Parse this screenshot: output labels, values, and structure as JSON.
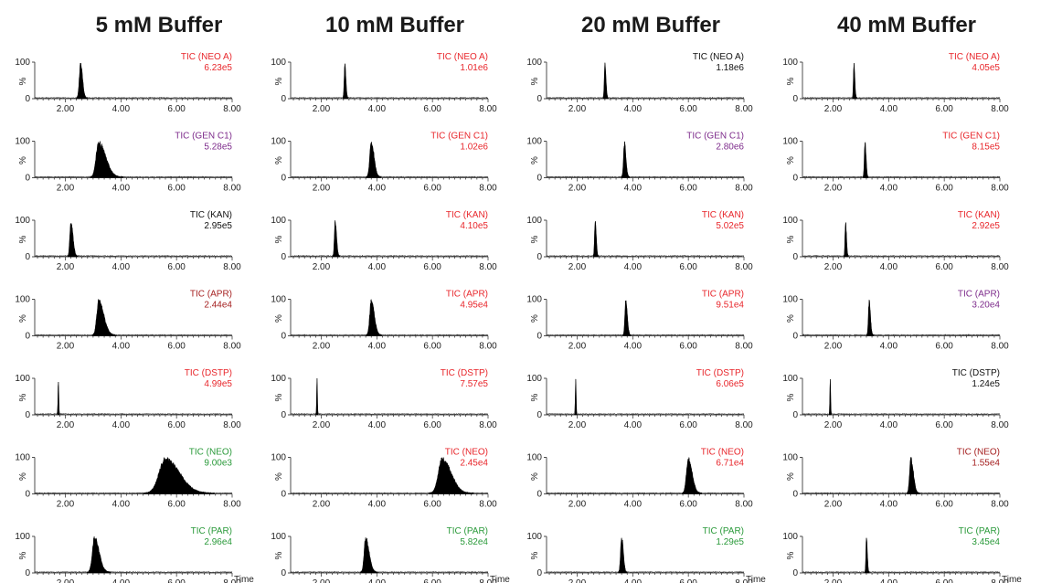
{
  "columns": [
    {
      "title": "5 mM Buffer"
    },
    {
      "title": "10 mM Buffer"
    },
    {
      "title": "20 mM Buffer"
    },
    {
      "title": "40 mM Buffer"
    }
  ],
  "axis": {
    "x_ticks": [
      "2.00",
      "4.00",
      "6.00",
      "8.00"
    ],
    "x_tick_values": [
      2,
      4,
      6,
      8
    ],
    "xlim": [
      0.9,
      8.0
    ],
    "y_ticks": [
      "100",
      "0"
    ],
    "ylabel": "%",
    "xlabel": "Time"
  },
  "colors": {
    "red": "#e8262b",
    "purple": "#7d2b8b",
    "green": "#2a9a3a",
    "dark_red": "#a52020",
    "black": "#111111"
  },
  "chart_data": {
    "type": "line",
    "xlabel": "Time",
    "ylabel": "%",
    "ylim": [
      0,
      100
    ],
    "rows": [
      "NEO A",
      "GEN C1",
      "KAN",
      "APR",
      "DSTP",
      "NEO",
      "PAR"
    ],
    "panels": [
      {
        "column": "5 mM Buffer",
        "label": "TIC (NEO A)",
        "intensity": "6.23e5",
        "color": "red",
        "peak_time": 2.55,
        "peak_width": 0.1,
        "tail": 0.05
      },
      {
        "column": "5 mM Buffer",
        "label": "TIC (GEN C1)",
        "intensity": "5.28e5",
        "color": "purple",
        "peak_time": 3.2,
        "peak_width": 0.2,
        "tail": 0.35
      },
      {
        "column": "5 mM Buffer",
        "label": "TIC (KAN)",
        "intensity": "2.95e5",
        "color": "black",
        "peak_time": 2.2,
        "peak_width": 0.08,
        "tail": 0.08
      },
      {
        "column": "5 mM Buffer",
        "label": "TIC (APR)",
        "intensity": "2.44e4",
        "color": "dark_red",
        "peak_time": 3.2,
        "peak_width": 0.15,
        "tail": 0.25
      },
      {
        "column": "5 mM Buffer",
        "label": "TIC (DSTP)",
        "intensity": "4.99e5",
        "color": "red",
        "peak_time": 1.75,
        "peak_width": 0.03,
        "tail": 0
      },
      {
        "column": "5 mM Buffer",
        "label": "TIC (NEO)",
        "intensity": "9.00e3",
        "color": "green",
        "peak_time": 5.6,
        "peak_width": 0.5,
        "tail": 0.6
      },
      {
        "column": "5 mM Buffer",
        "label": "TIC (PAR)",
        "intensity": "2.96e4",
        "color": "green",
        "peak_time": 3.05,
        "peak_width": 0.17,
        "tail": 0.2
      },
      {
        "column": "10 mM Buffer",
        "label": "TIC (NEO A)",
        "intensity": "1.01e6",
        "color": "red",
        "peak_time": 2.85,
        "peak_width": 0.05,
        "tail": 0.03
      },
      {
        "column": "10 mM Buffer",
        "label": "TIC (GEN C1)",
        "intensity": "1.02e6",
        "color": "red",
        "peak_time": 3.8,
        "peak_width": 0.12,
        "tail": 0.1
      },
      {
        "column": "10 mM Buffer",
        "label": "TIC (KAN)",
        "intensity": "4.10e5",
        "color": "red",
        "peak_time": 2.5,
        "peak_width": 0.06,
        "tail": 0.05
      },
      {
        "column": "10 mM Buffer",
        "label": "TIC (APR)",
        "intensity": "4.95e4",
        "color": "red",
        "peak_time": 3.8,
        "peak_width": 0.12,
        "tail": 0.12
      },
      {
        "column": "10 mM Buffer",
        "label": "TIC (DSTP)",
        "intensity": "7.57e5",
        "color": "red",
        "peak_time": 1.85,
        "peak_width": 0.03,
        "tail": 0
      },
      {
        "column": "10 mM Buffer",
        "label": "TIC (NEO)",
        "intensity": "2.45e4",
        "color": "red",
        "peak_time": 6.35,
        "peak_width": 0.3,
        "tail": 0.4
      },
      {
        "column": "10 mM Buffer",
        "label": "TIC (PAR)",
        "intensity": "5.82e4",
        "color": "green",
        "peak_time": 3.6,
        "peak_width": 0.12,
        "tail": 0.15
      },
      {
        "column": "20 mM Buffer",
        "label": "TIC (NEO A)",
        "intensity": "1.18e6",
        "color": "black",
        "peak_time": 3.0,
        "peak_width": 0.05,
        "tail": 0.03
      },
      {
        "column": "20 mM Buffer",
        "label": "TIC (GEN C1)",
        "intensity": "2.80e6",
        "color": "purple",
        "peak_time": 3.7,
        "peak_width": 0.07,
        "tail": 0.05
      },
      {
        "column": "20 mM Buffer",
        "label": "TIC (KAN)",
        "intensity": "5.02e5",
        "color": "red",
        "peak_time": 2.65,
        "peak_width": 0.05,
        "tail": 0.03
      },
      {
        "column": "20 mM Buffer",
        "label": "TIC (APR)",
        "intensity": "9.51e4",
        "color": "red",
        "peak_time": 3.75,
        "peak_width": 0.07,
        "tail": 0.05
      },
      {
        "column": "20 mM Buffer",
        "label": "TIC (DSTP)",
        "intensity": "6.06e5",
        "color": "red",
        "peak_time": 1.95,
        "peak_width": 0.03,
        "tail": 0
      },
      {
        "column": "20 mM Buffer",
        "label": "TIC (NEO)",
        "intensity": "6.71e4",
        "color": "red",
        "peak_time": 6.0,
        "peak_width": 0.15,
        "tail": 0.15
      },
      {
        "column": "20 mM Buffer",
        "label": "TIC (PAR)",
        "intensity": "1.29e5",
        "color": "green",
        "peak_time": 3.6,
        "peak_width": 0.08,
        "tail": 0.05
      },
      {
        "column": "40 mM Buffer",
        "label": "TIC (NEO A)",
        "intensity": "4.05e5",
        "color": "red",
        "peak_time": 2.75,
        "peak_width": 0.04,
        "tail": 0.03
      },
      {
        "column": "40 mM Buffer",
        "label": "TIC (GEN C1)",
        "intensity": "8.15e5",
        "color": "red",
        "peak_time": 3.15,
        "peak_width": 0.05,
        "tail": 0.03
      },
      {
        "column": "40 mM Buffer",
        "label": "TIC (KAN)",
        "intensity": "2.92e5",
        "color": "red",
        "peak_time": 2.45,
        "peak_width": 0.04,
        "tail": 0.03
      },
      {
        "column": "40 mM Buffer",
        "label": "TIC (APR)",
        "intensity": "3.20e4",
        "color": "purple",
        "peak_time": 3.3,
        "peak_width": 0.06,
        "tail": 0.04
      },
      {
        "column": "40 mM Buffer",
        "label": "TIC (DSTP)",
        "intensity": "1.24e5",
        "color": "black",
        "peak_time": 1.9,
        "peak_width": 0.03,
        "tail": 0
      },
      {
        "column": "40 mM Buffer",
        "label": "TIC (NEO)",
        "intensity": "1.55e4",
        "color": "dark_red",
        "peak_time": 4.8,
        "peak_width": 0.1,
        "tail": 0.1
      },
      {
        "column": "40 mM Buffer",
        "label": "TIC (PAR)",
        "intensity": "3.45e4",
        "color": "green",
        "peak_time": 3.2,
        "peak_width": 0.04,
        "tail": 0.03
      }
    ]
  }
}
